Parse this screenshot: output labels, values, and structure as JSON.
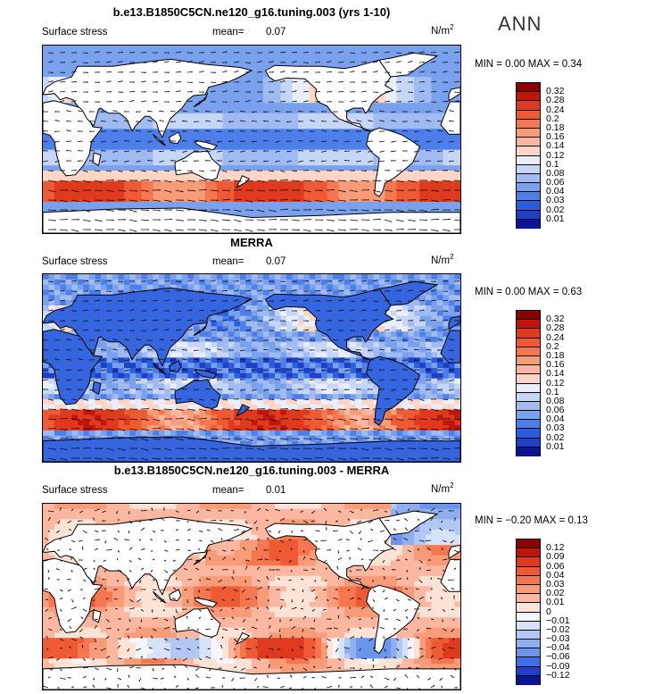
{
  "season": "ANN",
  "panels": [
    {
      "title": "b.e13.B1850C5CN.ne120_g16.tuning.003 (yrs 1-10)",
      "variable": "Surface stress",
      "mean_label": "mean=",
      "mean_value": "0.07",
      "units_base": "N/m",
      "units_sup": "2",
      "minmax": "MIN =   0.00 MAX =   0.34",
      "colorbar_labels": [
        "0.32",
        "0.28",
        "0.24",
        "0.2",
        "0.18",
        "0.16",
        "0.14",
        "0.12",
        "0.1",
        "0.08",
        "0.06",
        "0.04",
        "0.03",
        "0.02",
        "0.01"
      ],
      "palette": "magnitude"
    },
    {
      "title": "MERRA",
      "variable": "Surface stress",
      "mean_label": "mean=",
      "mean_value": "0.07",
      "units_base": "N/m",
      "units_sup": "2",
      "minmax": "MIN =   0.00 MAX =   0.63",
      "colorbar_labels": [
        "0.32",
        "0.28",
        "0.24",
        "0.2",
        "0.18",
        "0.16",
        "0.14",
        "0.12",
        "0.1",
        "0.08",
        "0.06",
        "0.04",
        "0.03",
        "0.02",
        "0.01"
      ],
      "palette": "magnitude"
    },
    {
      "title": "b.e13.B1850C5CN.ne120_g16.tuning.003 - MERRA",
      "variable": "Surface stress",
      "mean_label": "mean=",
      "mean_value": "0.01",
      "units_base": "N/m",
      "units_sup": "2",
      "minmax": "MIN = −0.20 MAX =   0.13",
      "colorbar_labels": [
        "0.12",
        "0.09",
        "0.06",
        "0.04",
        "0.03",
        "0.02",
        "0.01",
        "0",
        "−0.01",
        "−0.02",
        "−0.03",
        "−0.04",
        "−0.06",
        "−0.09",
        "−0.12"
      ],
      "palette": "difference"
    }
  ],
  "colors": {
    "magnitude": [
      "#8b0000",
      "#c1140c",
      "#df3a1e",
      "#ee5a33",
      "#f5774f",
      "#f89b78",
      "#fbb79f",
      "#fdd5c4",
      "#e9eefa",
      "#c6d6f6",
      "#9fbbf2",
      "#7aa1ee",
      "#4c7fea",
      "#2a5ee0",
      "#1f3fc4",
      "#0b1496"
    ],
    "difference": [
      "#8b0000",
      "#c1140c",
      "#df3a1e",
      "#ee5a33",
      "#f5774f",
      "#f89b78",
      "#fbb79f",
      "#fde3d6",
      "#f4f6fc",
      "#d6e2f8",
      "#b2c8f4",
      "#8eaef0",
      "#6b94ec",
      "#3f6fe6",
      "#1f3fc4",
      "#0b1496"
    ],
    "land": "#ffffff",
    "ocean_magnitude": "#2b63e0",
    "ocean_difference": "#f6d3c2"
  },
  "chart_data": {
    "type": "heatmap",
    "description_of_fields": "Three global maps of annual mean surface stress (N/m^2) with wind-stress vectors; continuous field not tabulated.",
    "series": [
      {
        "name": "b.e13.B1850C5CN.ne120_g16.tuning.003 (yrs 1-10)",
        "mean": 0.07,
        "min": 0.0,
        "max": 0.34
      },
      {
        "name": "MERRA",
        "mean": 0.07,
        "min": 0.0,
        "max": 0.63
      },
      {
        "name": "b.e13.B1850C5CN.ne120_g16.tuning.003 - MERRA",
        "mean": 0.01,
        "min": -0.2,
        "max": 0.13
      }
    ],
    "magnitude_levels": [
      0.01,
      0.02,
      0.03,
      0.04,
      0.06,
      0.08,
      0.1,
      0.12,
      0.14,
      0.16,
      0.18,
      0.2,
      0.24,
      0.28,
      0.32
    ],
    "difference_levels": [
      -0.12,
      -0.09,
      -0.06,
      -0.04,
      -0.03,
      -0.02,
      -0.01,
      0,
      0.01,
      0.02,
      0.03,
      0.04,
      0.06,
      0.09,
      0.12
    ]
  }
}
